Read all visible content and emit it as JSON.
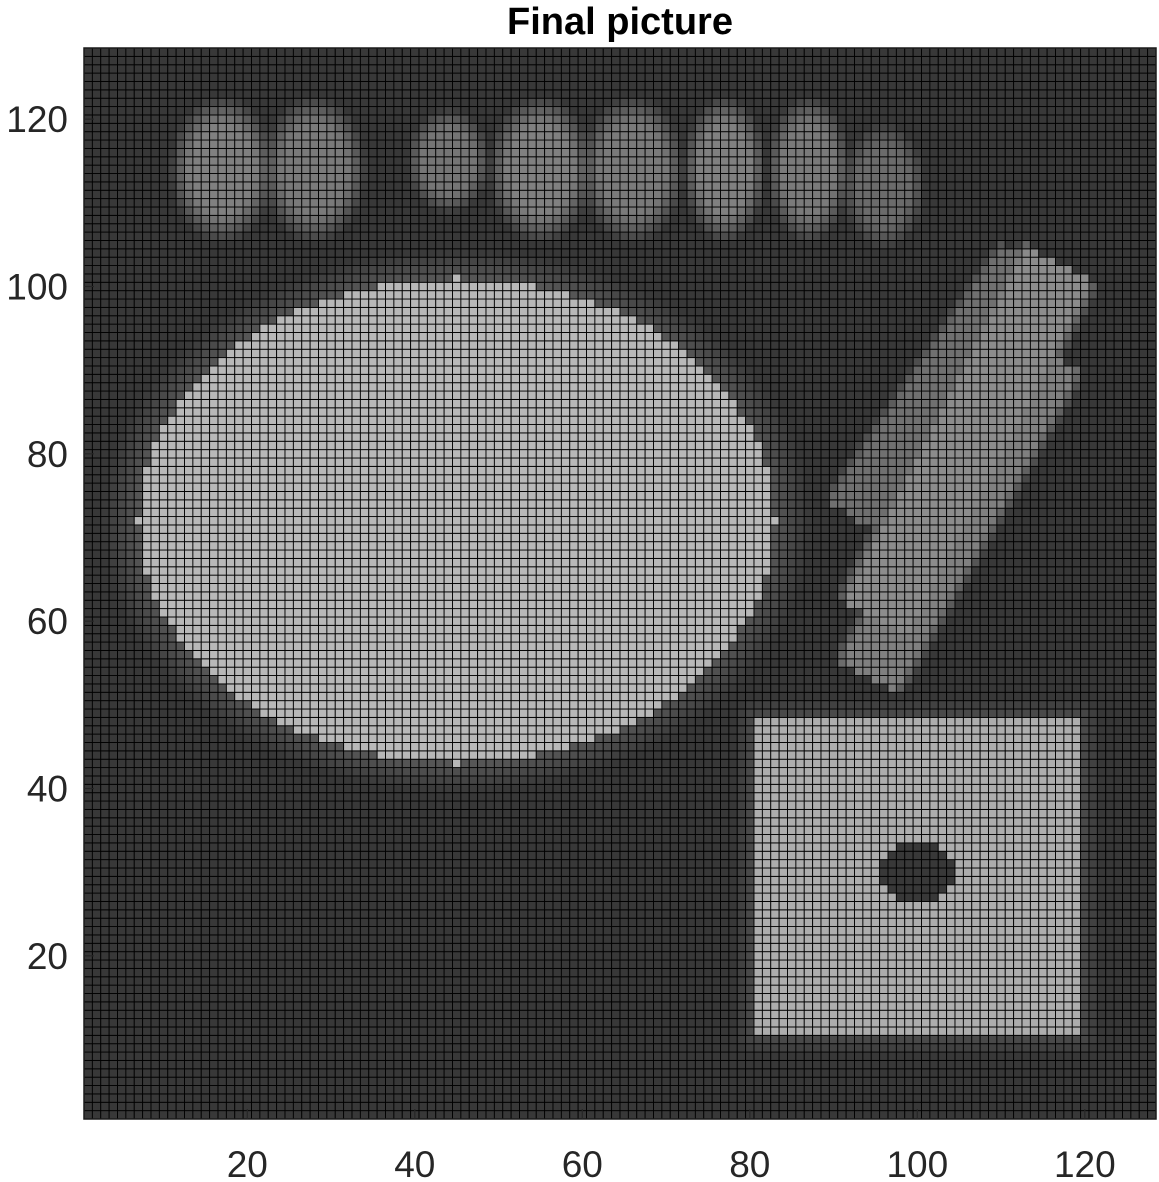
{
  "chart_data": {
    "type": "heatmap",
    "title": "Final picture",
    "xlabel": "",
    "ylabel": "",
    "grid_size": [
      128,
      128
    ],
    "xlim": [
      0.5,
      128.5
    ],
    "ylim": [
      0.5,
      128.5
    ],
    "x_ticks": [
      20,
      40,
      60,
      80,
      100,
      120
    ],
    "x_tick_labels": [
      "20",
      "40",
      "60",
      "80",
      "100",
      "120"
    ],
    "y_ticks": [
      20,
      40,
      60,
      80,
      100,
      120
    ],
    "y_tick_labels": [
      "20",
      "40",
      "60",
      "80",
      "100",
      "120"
    ],
    "colormap": "gray",
    "cell_edge_color": "#000000",
    "background_intensity": 0.22,
    "shapes": [
      {
        "kind": "ellipse",
        "center": [
          45,
          72
        ],
        "radii": [
          38,
          29
        ],
        "intensity": 0.72
      },
      {
        "kind": "rectangle",
        "x_range": [
          81,
          119
        ],
        "y_range": [
          11,
          48
        ],
        "intensity": 0.68
      },
      {
        "kind": "ellipse",
        "center": [
          100,
          30
        ],
        "radii": [
          4.5,
          3.5
        ],
        "intensity": 0.18
      },
      {
        "kind": "blob",
        "center": [
          17,
          114
        ],
        "radii": [
          5,
          7
        ],
        "intensity": 0.5
      },
      {
        "kind": "blob",
        "center": [
          28,
          114
        ],
        "radii": [
          5,
          7
        ],
        "intensity": 0.48
      },
      {
        "kind": "blob",
        "center": [
          44,
          115
        ],
        "radii": [
          4,
          5
        ],
        "intensity": 0.46
      },
      {
        "kind": "blob",
        "center": [
          55,
          114
        ],
        "radii": [
          5,
          7
        ],
        "intensity": 0.5
      },
      {
        "kind": "blob",
        "center": [
          66,
          114
        ],
        "radii": [
          5,
          7
        ],
        "intensity": 0.48
      },
      {
        "kind": "blob",
        "center": [
          77,
          114
        ],
        "radii": [
          4,
          7
        ],
        "intensity": 0.5
      },
      {
        "kind": "blob",
        "center": [
          87,
          114
        ],
        "radii": [
          4,
          7
        ],
        "intensity": 0.48
      },
      {
        "kind": "blob",
        "center": [
          96,
          112
        ],
        "radii": [
          4,
          6
        ],
        "intensity": 0.42
      },
      {
        "kind": "stripe",
        "from": [
          96,
          62
        ],
        "to": [
          116,
          101
        ],
        "width": 4.2,
        "intensity": 0.55
      },
      {
        "kind": "stripe",
        "from": [
          95,
          55
        ],
        "to": [
          115,
          90
        ],
        "width": 3.6,
        "intensity": 0.5
      },
      {
        "kind": "stripe",
        "from": [
          93,
          74
        ],
        "to": [
          112,
          102
        ],
        "width": 3,
        "intensity": 0.44
      }
    ]
  }
}
